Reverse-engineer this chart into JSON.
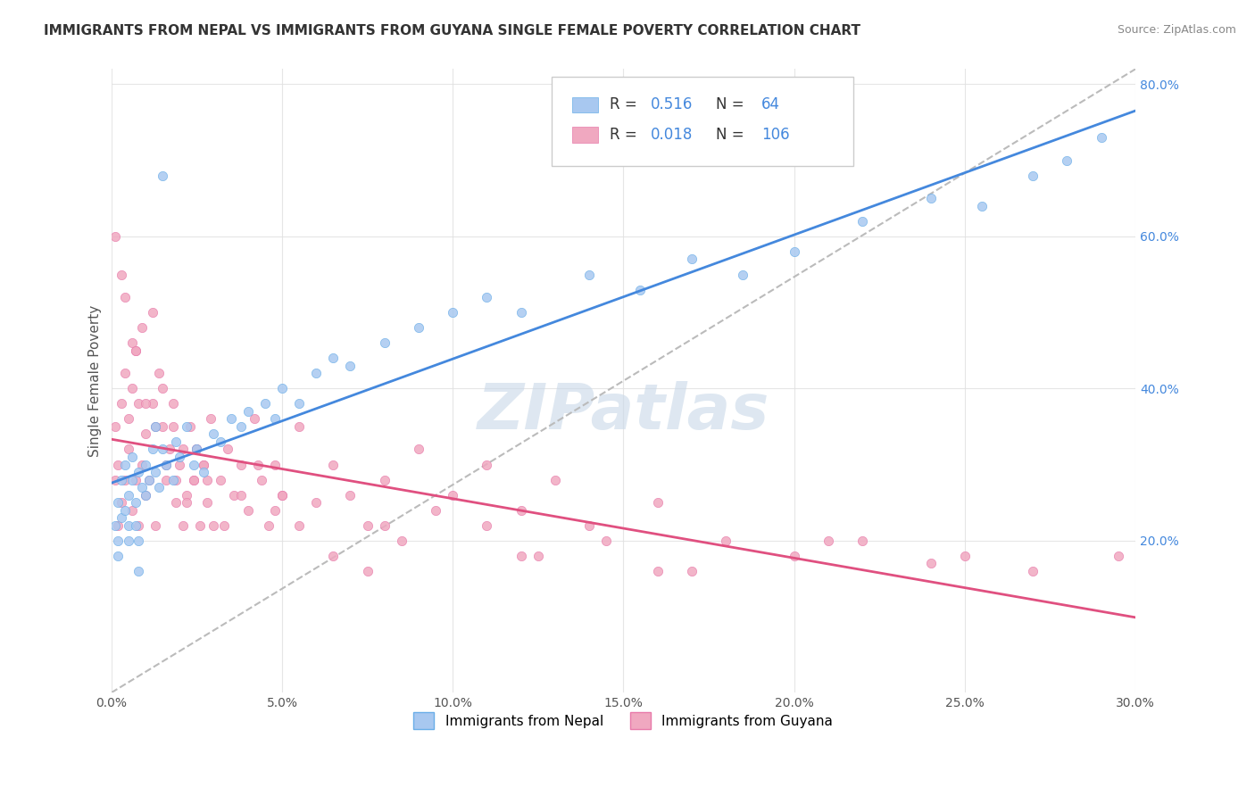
{
  "title": "IMMIGRANTS FROM NEPAL VS IMMIGRANTS FROM GUYANA SINGLE FEMALE POVERTY CORRELATION CHART",
  "source_text": "Source: ZipAtlas.com",
  "ylabel": "Single Female Poverty",
  "legend_nepal": "Immigrants from Nepal",
  "legend_guyana": "Immigrants from Guyana",
  "nepal_R": "0.516",
  "nepal_N": "64",
  "guyana_R": "0.018",
  "guyana_N": "106",
  "nepal_color": "#a8c8f0",
  "nepal_color_dark": "#6aaee8",
  "guyana_color": "#f0a8c0",
  "guyana_color_dark": "#e87aaa",
  "nepal_trend_color": "#4488dd",
  "guyana_trend_color": "#e05080",
  "ref_line_color": "#bbbbbb",
  "background_color": "#ffffff",
  "grid_color": "#e0e0e0",
  "title_color": "#333333",
  "watermark_text": "ZIPatlas",
  "watermark_color": "#c8d8e8",
  "xlim": [
    0.0,
    0.3
  ],
  "ylim": [
    0.0,
    0.82
  ],
  "nepal_scatter_x": [
    0.001,
    0.002,
    0.002,
    0.003,
    0.003,
    0.004,
    0.004,
    0.005,
    0.005,
    0.006,
    0.006,
    0.007,
    0.007,
    0.008,
    0.008,
    0.009,
    0.01,
    0.01,
    0.011,
    0.012,
    0.013,
    0.013,
    0.014,
    0.015,
    0.016,
    0.018,
    0.019,
    0.02,
    0.022,
    0.024,
    0.025,
    0.027,
    0.03,
    0.032,
    0.035,
    0.038,
    0.04,
    0.045,
    0.048,
    0.05,
    0.055,
    0.06,
    0.065,
    0.07,
    0.08,
    0.09,
    0.1,
    0.11,
    0.12,
    0.14,
    0.155,
    0.17,
    0.185,
    0.2,
    0.22,
    0.24,
    0.255,
    0.27,
    0.28,
    0.29,
    0.002,
    0.005,
    0.008,
    0.015
  ],
  "nepal_scatter_y": [
    0.22,
    0.2,
    0.25,
    0.28,
    0.23,
    0.24,
    0.3,
    0.22,
    0.26,
    0.28,
    0.31,
    0.25,
    0.22,
    0.29,
    0.2,
    0.27,
    0.26,
    0.3,
    0.28,
    0.32,
    0.29,
    0.35,
    0.27,
    0.32,
    0.3,
    0.28,
    0.33,
    0.31,
    0.35,
    0.3,
    0.32,
    0.29,
    0.34,
    0.33,
    0.36,
    0.35,
    0.37,
    0.38,
    0.36,
    0.4,
    0.38,
    0.42,
    0.44,
    0.43,
    0.46,
    0.48,
    0.5,
    0.52,
    0.5,
    0.55,
    0.53,
    0.57,
    0.55,
    0.58,
    0.62,
    0.65,
    0.64,
    0.68,
    0.7,
    0.73,
    0.18,
    0.2,
    0.16,
    0.68
  ],
  "guyana_scatter_x": [
    0.001,
    0.001,
    0.002,
    0.002,
    0.003,
    0.003,
    0.004,
    0.004,
    0.005,
    0.005,
    0.006,
    0.006,
    0.007,
    0.007,
    0.008,
    0.008,
    0.009,
    0.01,
    0.01,
    0.011,
    0.012,
    0.013,
    0.014,
    0.015,
    0.016,
    0.017,
    0.018,
    0.019,
    0.02,
    0.021,
    0.022,
    0.023,
    0.024,
    0.025,
    0.026,
    0.027,
    0.028,
    0.029,
    0.03,
    0.032,
    0.034,
    0.036,
    0.038,
    0.04,
    0.042,
    0.044,
    0.046,
    0.048,
    0.05,
    0.055,
    0.06,
    0.065,
    0.07,
    0.075,
    0.08,
    0.09,
    0.1,
    0.11,
    0.12,
    0.13,
    0.14,
    0.16,
    0.18,
    0.2,
    0.003,
    0.006,
    0.009,
    0.012,
    0.015,
    0.018,
    0.021,
    0.024,
    0.027,
    0.05,
    0.08,
    0.12,
    0.16,
    0.001,
    0.004,
    0.007,
    0.01,
    0.013,
    0.016,
    0.019,
    0.022,
    0.025,
    0.028,
    0.033,
    0.038,
    0.043,
    0.048,
    0.055,
    0.065,
    0.075,
    0.085,
    0.095,
    0.11,
    0.125,
    0.145,
    0.17,
    0.21,
    0.25,
    0.27,
    0.295,
    0.22,
    0.24
  ],
  "guyana_scatter_y": [
    0.28,
    0.35,
    0.22,
    0.3,
    0.38,
    0.25,
    0.42,
    0.28,
    0.32,
    0.36,
    0.24,
    0.4,
    0.28,
    0.45,
    0.22,
    0.38,
    0.3,
    0.26,
    0.34,
    0.28,
    0.5,
    0.22,
    0.42,
    0.35,
    0.28,
    0.32,
    0.38,
    0.25,
    0.3,
    0.22,
    0.26,
    0.35,
    0.28,
    0.32,
    0.22,
    0.3,
    0.25,
    0.36,
    0.22,
    0.28,
    0.32,
    0.26,
    0.3,
    0.24,
    0.36,
    0.28,
    0.22,
    0.3,
    0.26,
    0.35,
    0.25,
    0.3,
    0.26,
    0.22,
    0.28,
    0.32,
    0.26,
    0.3,
    0.24,
    0.28,
    0.22,
    0.25,
    0.2,
    0.18,
    0.55,
    0.46,
    0.48,
    0.38,
    0.4,
    0.35,
    0.32,
    0.28,
    0.3,
    0.26,
    0.22,
    0.18,
    0.16,
    0.6,
    0.52,
    0.45,
    0.38,
    0.35,
    0.3,
    0.28,
    0.25,
    0.32,
    0.28,
    0.22,
    0.26,
    0.3,
    0.24,
    0.22,
    0.18,
    0.16,
    0.2,
    0.24,
    0.22,
    0.18,
    0.2,
    0.16,
    0.2,
    0.18,
    0.16,
    0.18,
    0.2,
    0.17
  ]
}
